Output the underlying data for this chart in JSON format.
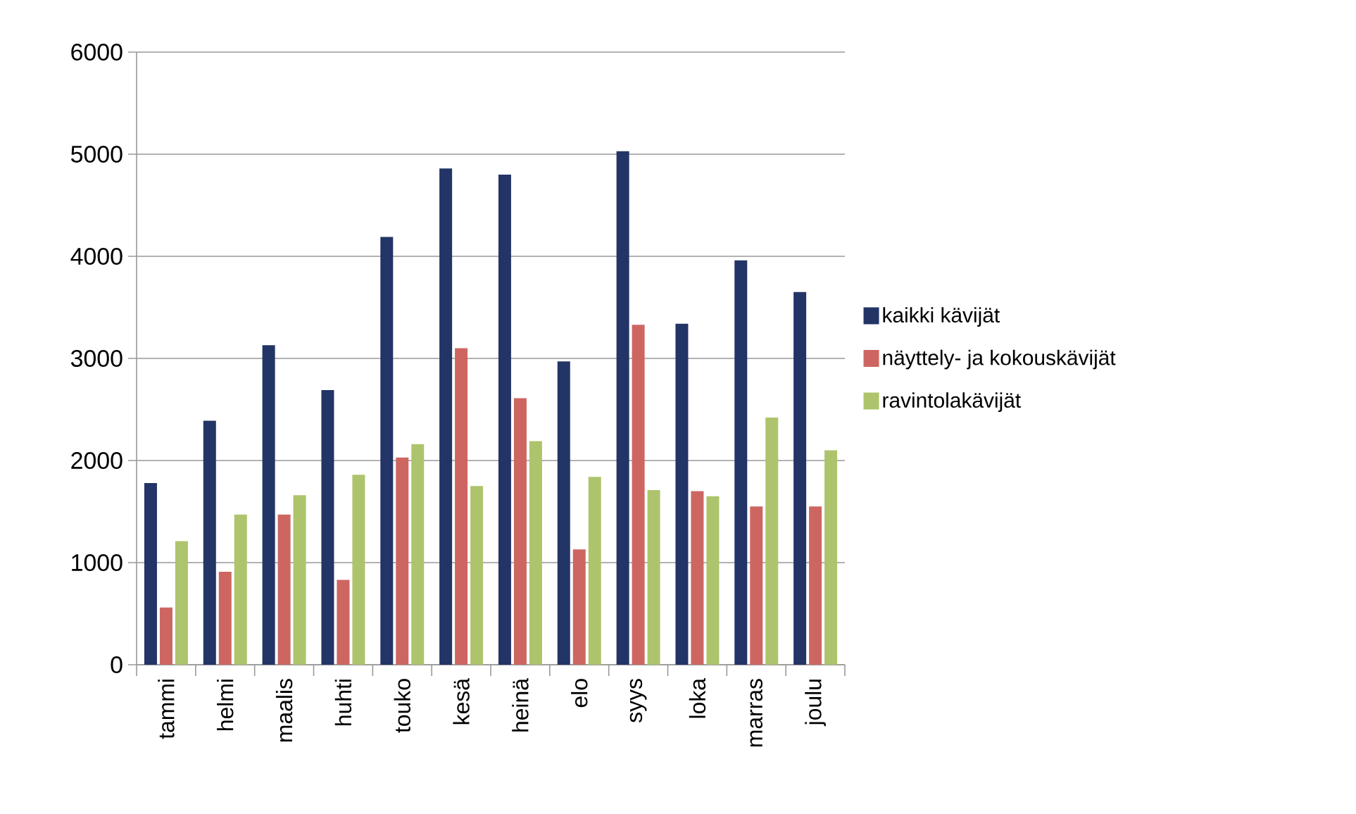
{
  "chart_data": {
    "type": "bar",
    "categories": [
      "tammi",
      "helmi",
      "maalis",
      "huhti",
      "touko",
      "kesä",
      "heinä",
      "elo",
      "syys",
      "loka",
      "marras",
      "joulu"
    ],
    "series": [
      {
        "name": "kaikki kävijät",
        "color": "#233466",
        "values": [
          1780,
          2390,
          3130,
          2690,
          4190,
          4860,
          4800,
          2970,
          5030,
          3340,
          3960,
          3650
        ]
      },
      {
        "name": "näyttely- ja kokouskävijät",
        "color": "#cd6661",
        "values": [
          560,
          910,
          1470,
          830,
          2030,
          3100,
          2610,
          1130,
          3330,
          1700,
          1550,
          1550
        ]
      },
      {
        "name": "ravintolakävijät",
        "color": "#adc46c",
        "values": [
          1210,
          1470,
          1660,
          1860,
          2160,
          1750,
          2190,
          1840,
          1710,
          1650,
          2420,
          2100
        ]
      }
    ],
    "ylim": [
      0,
      6000
    ],
    "yticks": [
      0,
      1000,
      2000,
      3000,
      4000,
      5000,
      6000
    ],
    "grid": "y",
    "legend": "right"
  }
}
